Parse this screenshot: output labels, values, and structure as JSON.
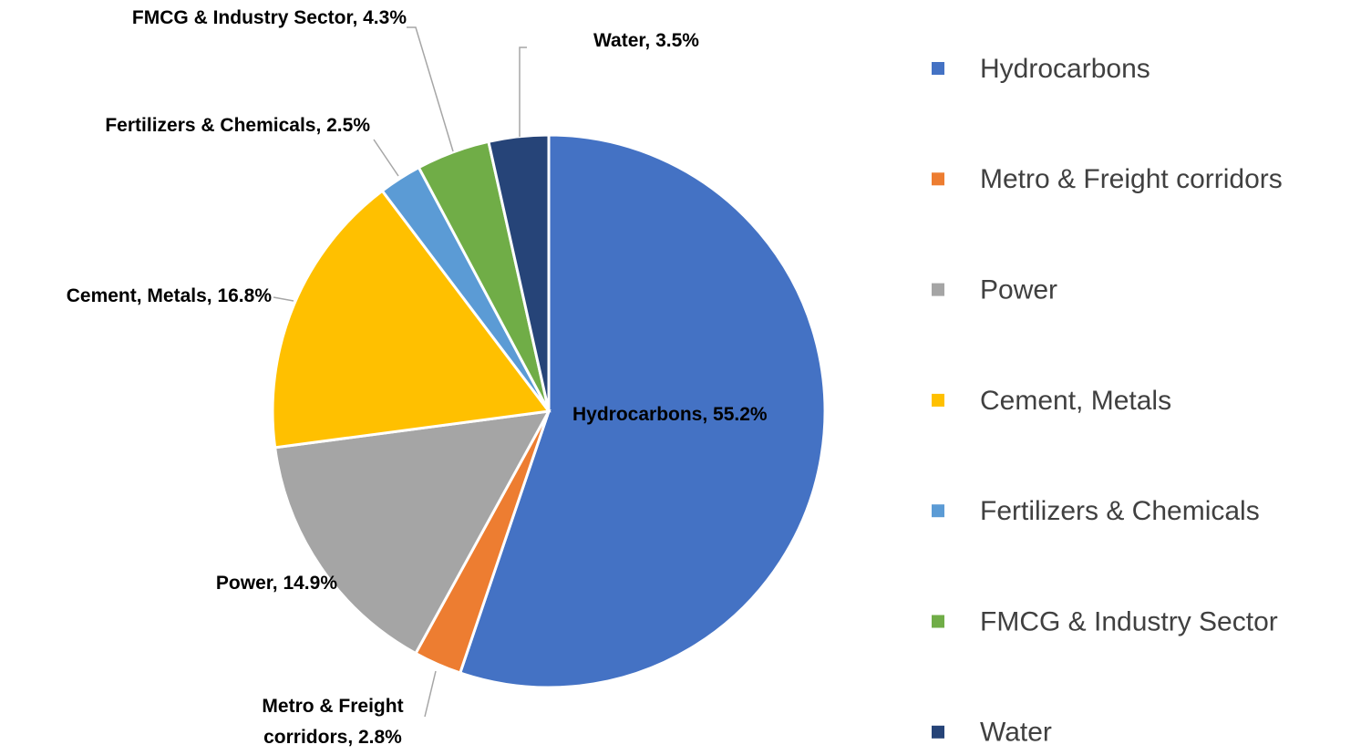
{
  "chart_data": {
    "type": "pie",
    "categories": [
      "Hydrocarbons",
      "Metro & Freight corridors",
      "Power",
      "Cement, Metals",
      "Fertilizers & Chemicals",
      "FMCG & Industry Sector",
      "Water"
    ],
    "values": [
      55.2,
      2.8,
      14.9,
      16.8,
      2.5,
      4.3,
      3.5
    ],
    "value_labels": [
      "Hydrocarbons, 55.2%",
      "Metro & Freight corridors, 2.8%",
      "Power, 14.9%",
      "Cement, Metals, 16.8%",
      "Fertilizers & Chemicals, 2.5%",
      "FMCG & Industry Sector, 4.3%",
      "Water, 3.5%"
    ],
    "colors": [
      "#4472c4",
      "#ed7d31",
      "#a5a5a5",
      "#ffc000",
      "#5b9bd5",
      "#70ad47",
      "#264478"
    ],
    "legend": "right"
  }
}
